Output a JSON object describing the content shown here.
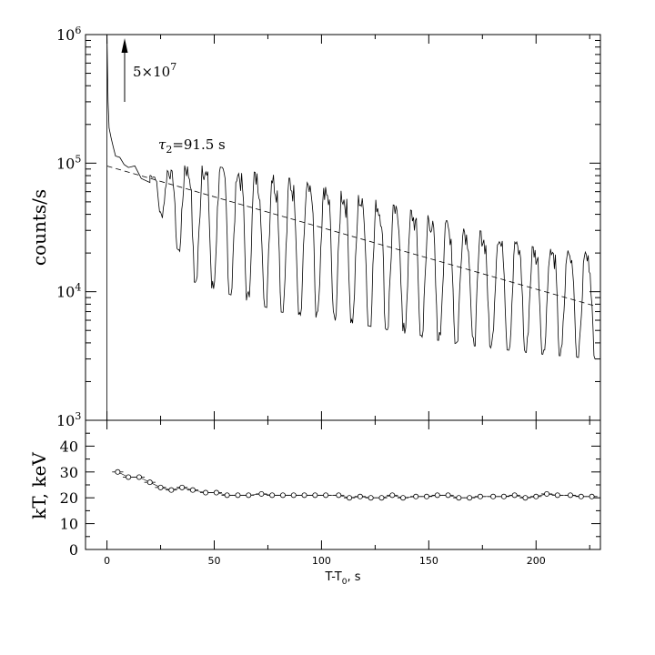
{
  "chart_data": [
    {
      "type": "line",
      "panel": "top",
      "ylabel": "counts/s",
      "yscale": "log",
      "ylim": [
        1000,
        1000000
      ],
      "xlim": [
        -10,
        230
      ],
      "ytick_labels": [
        {
          "base": "10",
          "exp": "3"
        },
        {
          "base": "10",
          "exp": "4"
        },
        {
          "base": "10",
          "exp": "5"
        },
        {
          "base": "10",
          "exp": "6"
        }
      ],
      "ytick_values": [
        1000,
        10000,
        100000,
        1000000
      ],
      "series": [
        {
          "name": "light curve",
          "description_points": {
            "x": [
              0,
              0.5,
              1,
              2,
              3,
              4,
              6,
              8,
              10,
              13,
              16,
              20,
              25,
              30,
              40
            ],
            "y": [
              1000,
              300000,
              200000,
              150000,
              130000,
              120000,
              105000,
              100000,
              95000,
              90000,
              80000,
              70000,
              65000,
              62000,
              60000
            ]
          },
          "pulse_period_s": 8.1,
          "pulse_high_envelope": {
            "x": [
              20,
              40,
              80,
              120,
              160,
              200,
              228
            ],
            "y": [
              80000,
              100000,
              80000,
              55000,
              35000,
              22000,
              20000
            ]
          },
          "pulse_low_envelope": {
            "x": [
              20,
              40,
              80,
              120,
              160,
              200,
              228
            ],
            "y": [
              60000,
              12000,
              7000,
              5500,
              4000,
              3300,
              3000
            ]
          }
        },
        {
          "name": "exponential fit",
          "style": "dashed",
          "tau_s": 91.5,
          "x": [
            0,
            228
          ],
          "y": [
            95000,
            7700
          ]
        }
      ],
      "annotations": [
        {
          "text_main": "5×10",
          "text_exp": "7"
        },
        {
          "text_symbol": "τ",
          "text_sub": "2",
          "text_rest": "=91.5 s"
        }
      ],
      "arrow_at_x": 8
    },
    {
      "type": "scatter",
      "panel": "bottom",
      "ylabel": "kT, keV",
      "xlabel_main": "T-T",
      "xlabel_sub": "0",
      "xlabel_rest": ", s",
      "ylim": [
        0,
        50
      ],
      "xlim": [
        -10,
        230
      ],
      "yticks": [
        0,
        10,
        20,
        30,
        40
      ],
      "xticks": [
        0,
        50,
        100,
        150,
        200
      ],
      "x": [
        5,
        10,
        15,
        20,
        25,
        30,
        35,
        40,
        46,
        51,
        56,
        61,
        66,
        72,
        77,
        82,
        87,
        92,
        97,
        102,
        108,
        113,
        118,
        123,
        128,
        133,
        138,
        144,
        149,
        154,
        159,
        164,
        169,
        174,
        180,
        185,
        190,
        195,
        200,
        205,
        210,
        216,
        221,
        226
      ],
      "y": [
        30,
        28,
        28,
        26,
        24,
        23,
        24,
        23,
        22,
        22,
        21,
        21,
        21,
        21.5,
        21,
        21,
        21,
        21,
        21,
        21,
        21,
        20,
        20.5,
        20,
        20,
        21,
        20,
        20.5,
        20.5,
        21,
        21,
        20,
        20,
        20.5,
        20.5,
        20.5,
        21,
        20,
        20.5,
        21.5,
        21,
        21,
        20.5,
        20.5
      ]
    }
  ]
}
